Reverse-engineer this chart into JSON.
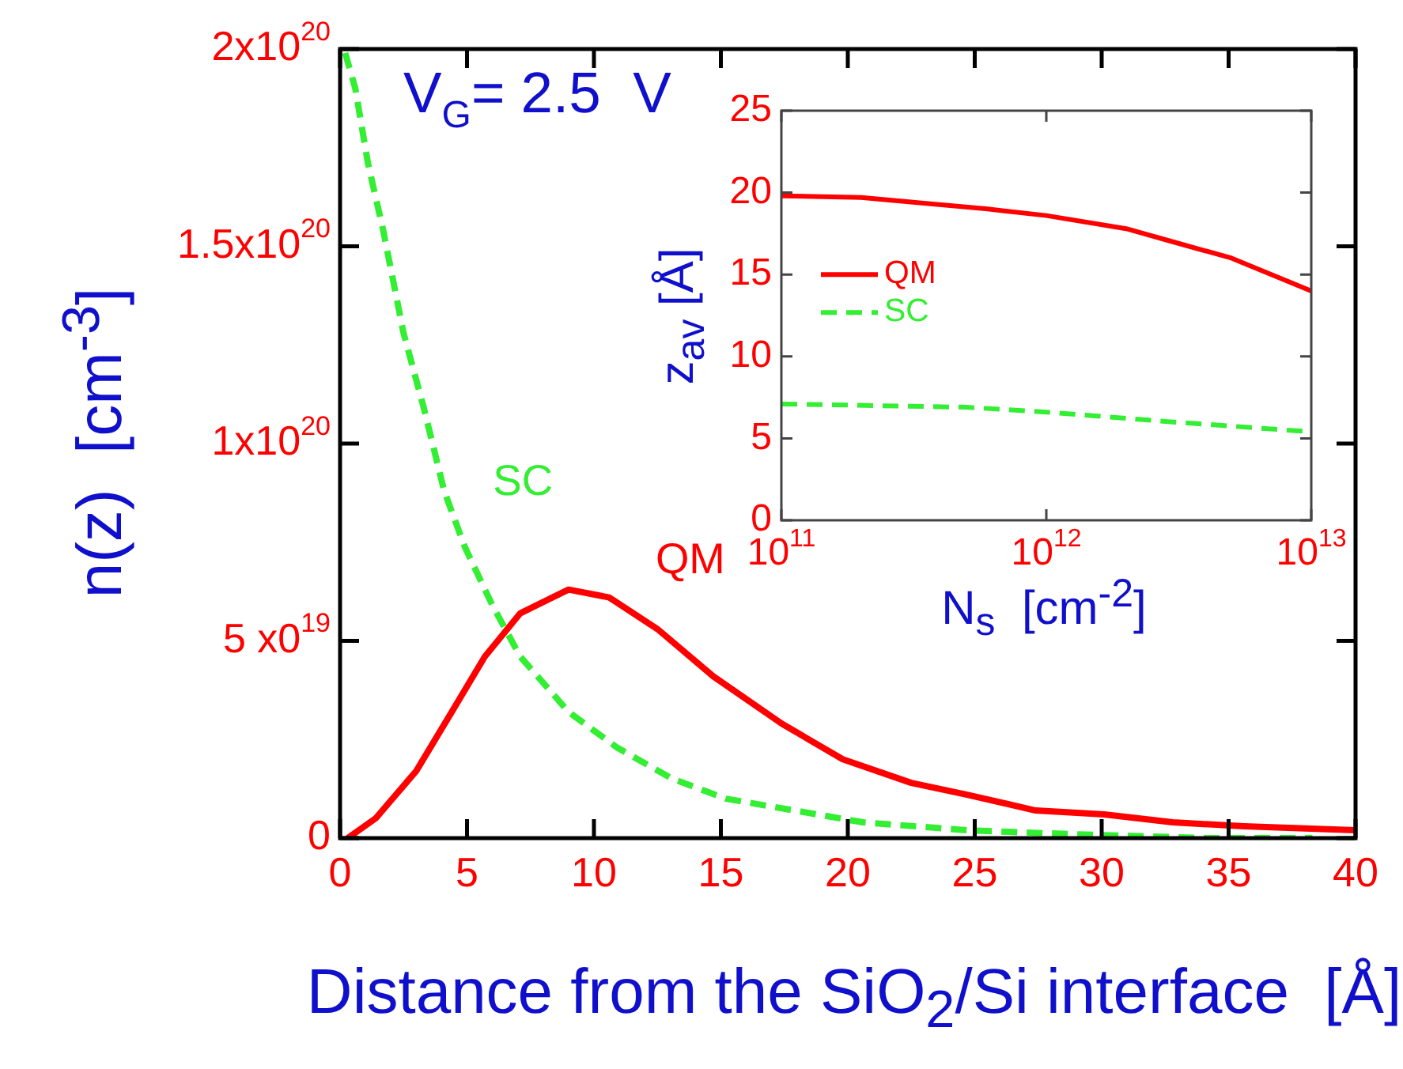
{
  "chart_data": [
    {
      "type": "line",
      "xlabel": "Distance from the SiO$_{2}$/Si interface  [Å]",
      "ylabel": "n(z)  [cm$^{-3}$]",
      "xlim": [
        0,
        40
      ],
      "xticks": [
        0,
        5,
        10,
        15,
        20,
        25,
        30,
        35,
        40
      ],
      "ylim": [
        0,
        2e+20
      ],
      "yticks": [
        {
          "value": 0,
          "label": "0"
        },
        {
          "value": 5e+19,
          "label": "5 x0$^{19}$"
        },
        {
          "value": 1e+20,
          "label": "1x10$^{20}$"
        },
        {
          "value": 1.5e+20,
          "label": "1.5x10$^{20}$"
        },
        {
          "value": 2e+20,
          "label": "2x10$^{20}$"
        }
      ],
      "marker": "none",
      "legend": false,
      "series": [
        {
          "name": "QM",
          "color": "#ff0000",
          "line_style": "solid",
          "x": [
            0.3,
            1.4,
            3.0,
            4.4,
            5.7,
            7.1,
            9.0,
            10.6,
            12.5,
            14.7,
            17.4,
            19.8,
            22.5,
            24.7,
            27.4,
            30.1,
            32.8,
            35.6,
            40
          ],
          "values": [
            0,
            5e+18,
            1.7e+19,
            3.2e+19,
            4.6e+19,
            5.7e+19,
            6.3e+19,
            6.1e+19,
            5.3e+19,
            4.1e+19,
            2.9e+19,
            2e+19,
            1.4e+19,
            1.1e+19,
            7e+18,
            6e+18,
            4e+18,
            3e+18,
            2e+18
          ]
        },
        {
          "name": "SC",
          "color": "#33ee33",
          "line_style": "dashed",
          "x": [
            0.2,
            0.6,
            1.1,
            1.7,
            2.5,
            3.3,
            4.1,
            4.9,
            6.0,
            7.1,
            9.0,
            10.9,
            13.1,
            15.2,
            17.9,
            20.6,
            24.7,
            28.8,
            34.2,
            38.3
          ],
          "values": [
            1.99e+20,
            1.9e+20,
            1.71e+20,
            1.54e+20,
            1.28e+20,
            1.09e+20,
            8.8e+19,
            7.4e+19,
            5.9e+19,
            4.6e+19,
            3.2e+19,
            2.3e+19,
            1.5e+19,
            1e+19,
            7e+18,
            4e+18,
            2e+18,
            1e+18,
            0,
            0
          ]
        }
      ],
      "annotations": [
        "V$_{G}$= 2.5  V"
      ]
    },
    {
      "type": "line",
      "xlabel": "N$_{s}$  [cm$^{-2}$]",
      "ylabel": "z$_{av}$ [Å]",
      "log": "x",
      "xlim": [
        100000000000.0,
        10000000000000.0
      ],
      "xticks": [
        {
          "value": 100000000000.0,
          "label": "10$^{11}$"
        },
        {
          "value": 1000000000000.0,
          "label": "10$^{12}$"
        },
        {
          "value": 10000000000000.0,
          "label": "10$^{13}$"
        }
      ],
      "ylim": [
        0,
        25
      ],
      "yticks": [
        0,
        5,
        10,
        15,
        20,
        25
      ],
      "marker": "none",
      "legend": "left",
      "series": [
        {
          "name": "QM",
          "color": "#ff0000",
          "line_style": "solid",
          "x": [
            100000000000.0,
            200000000000.0,
            600000000000.0,
            1000000000000.0,
            2000000000000.0,
            3000000000000.0,
            5000000000000.0,
            10000000000000.0
          ],
          "values": [
            19.8,
            19.7,
            19.0,
            18.6,
            17.8,
            17.0,
            16.0,
            14.0
          ]
        },
        {
          "name": "SC",
          "color": "#33ee33",
          "line_style": "dashed",
          "x": [
            100000000000.0,
            500000000000.0,
            1000000000000.0,
            3000000000000.0,
            10000000000000.0
          ],
          "values": [
            7.1,
            6.9,
            6.6,
            6.0,
            5.4
          ]
        }
      ]
    }
  ]
}
